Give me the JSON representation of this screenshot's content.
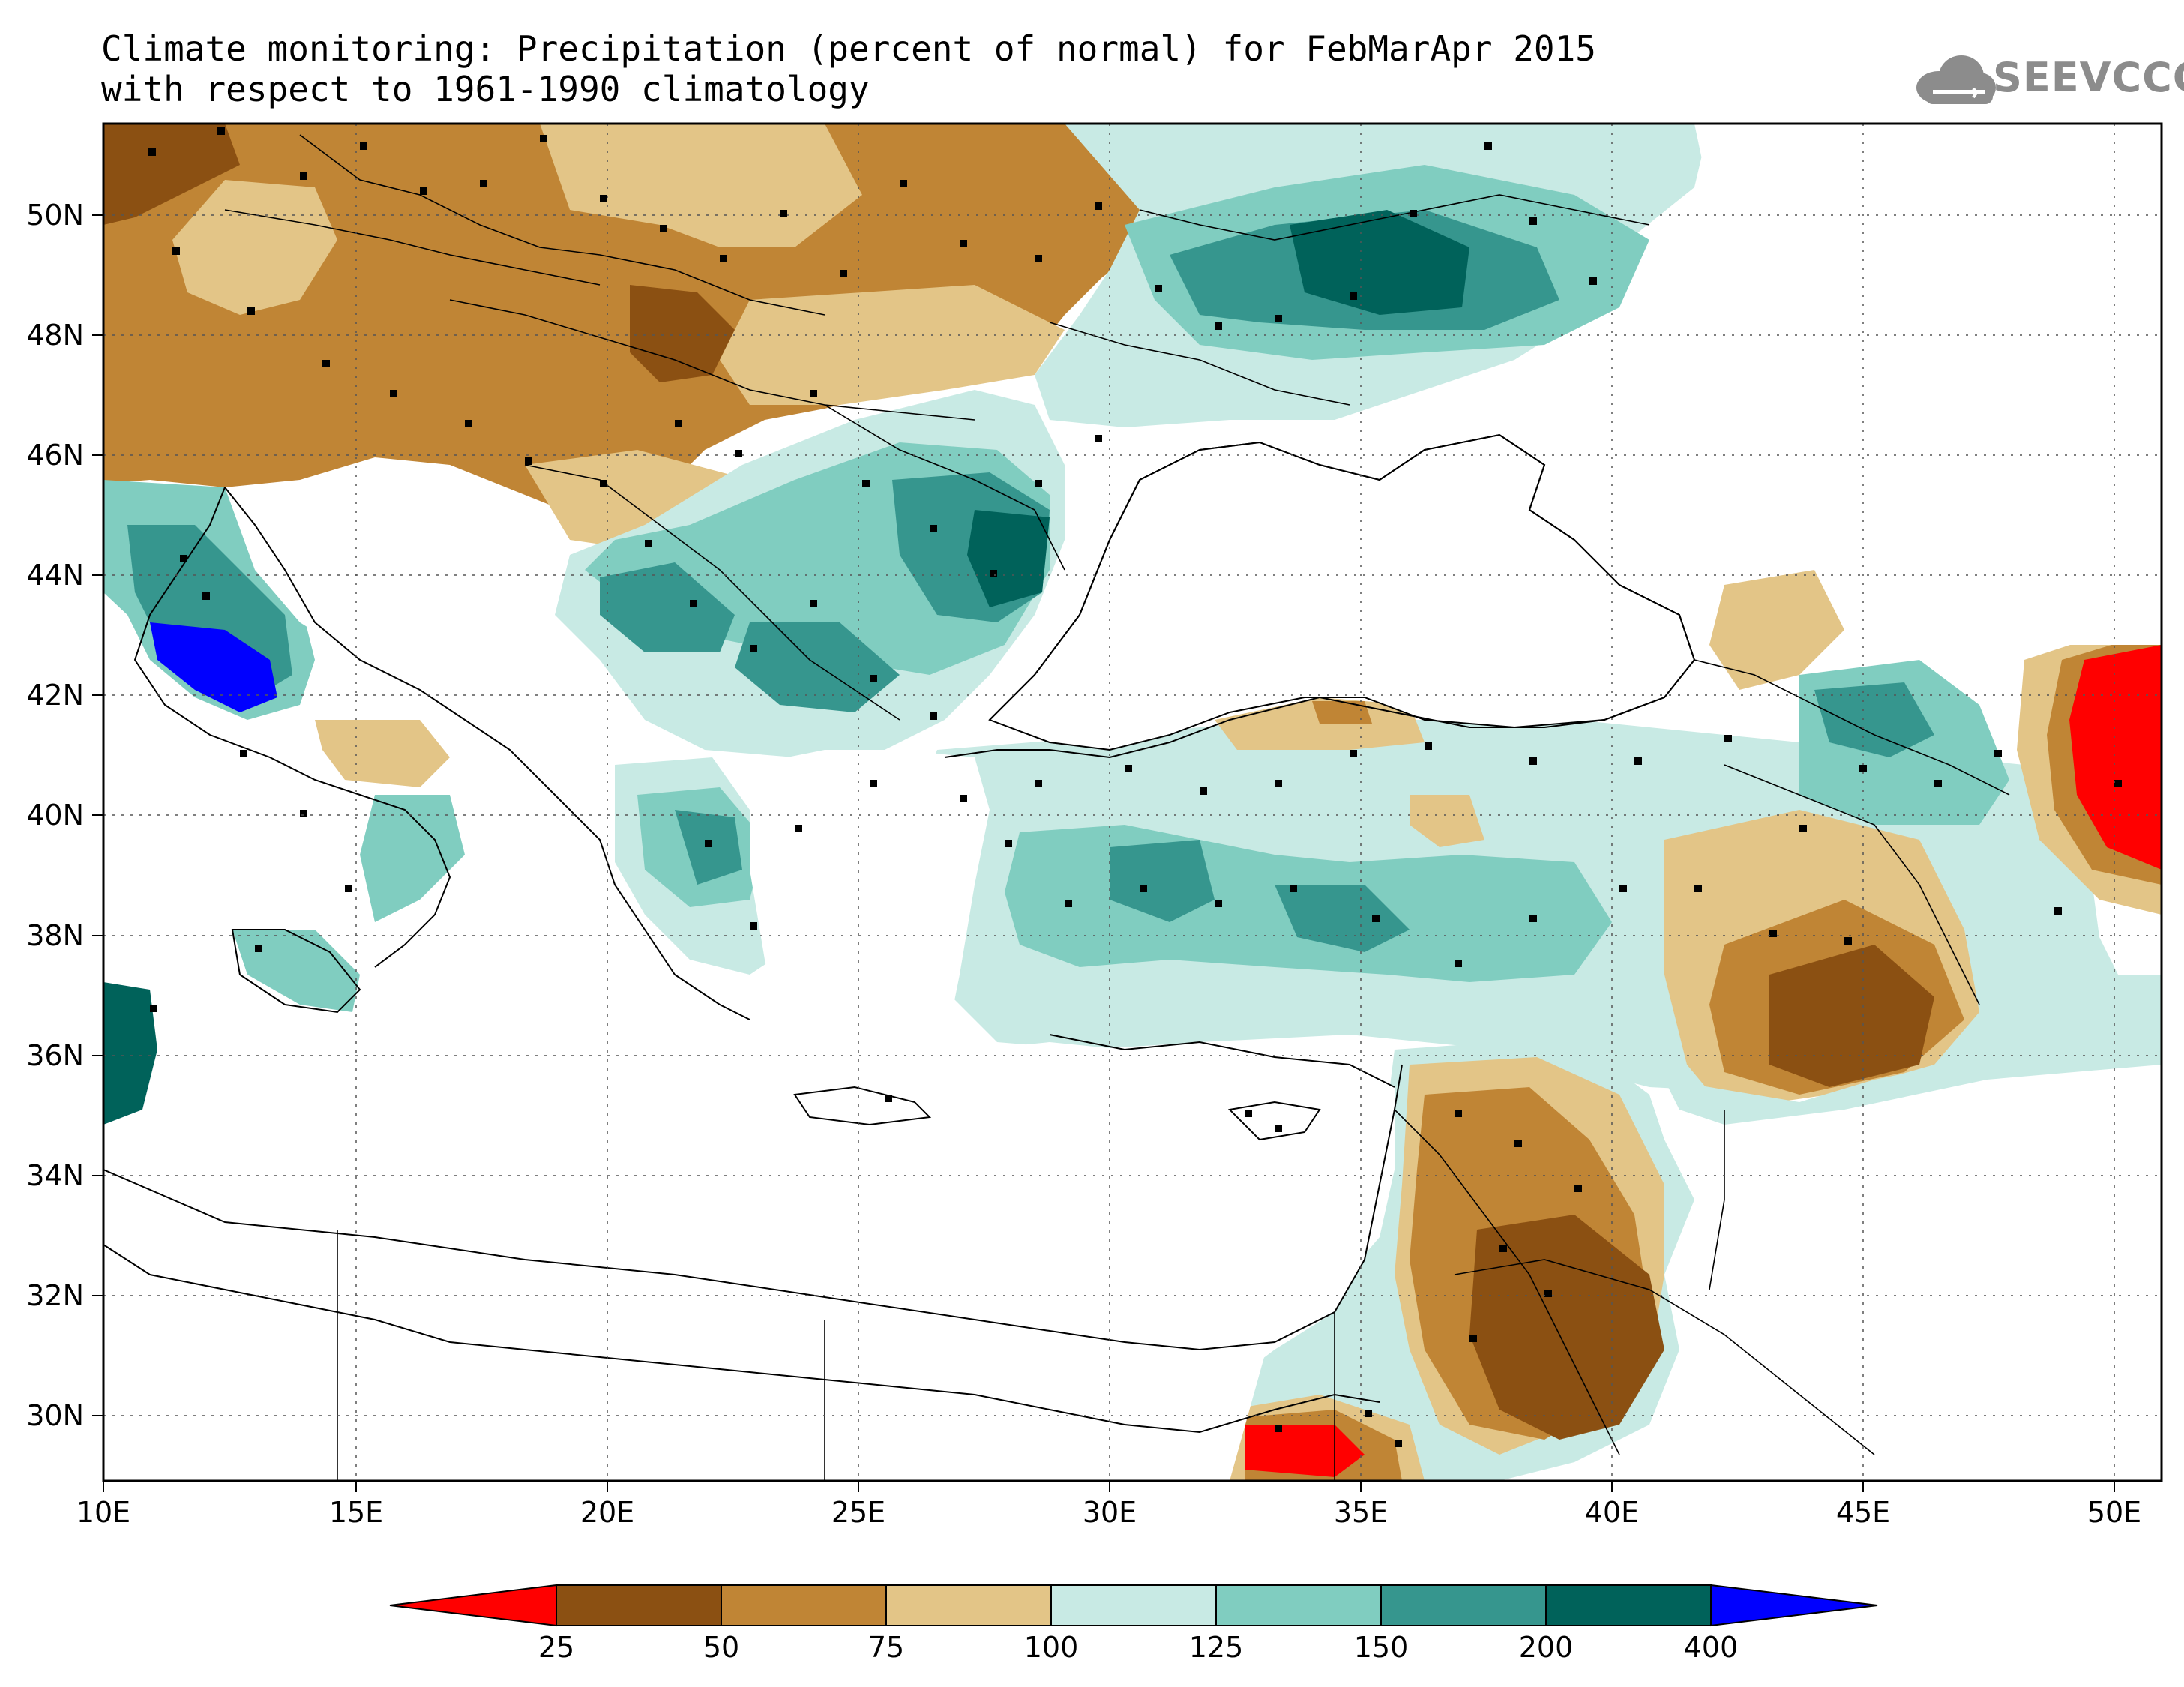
{
  "title": {
    "line1": "Climate monitoring: Precipitation (percent of normal) for FebMarApr 2015",
    "line2": "with respect to 1961-1990 climatology"
  },
  "logo": {
    "text": "SEEVCCC",
    "icon": "cloud-icon"
  },
  "map": {
    "lon_range": [
      10,
      51
    ],
    "lat_range": [
      29,
      51.5
    ],
    "lon_ticks": [
      "10E",
      "15E",
      "20E",
      "25E",
      "30E",
      "35E",
      "40E",
      "45E",
      "50E"
    ],
    "lat_ticks": [
      "30N",
      "32N",
      "34N",
      "36N",
      "38N",
      "40N",
      "42N",
      "44N",
      "46N",
      "48N",
      "50N"
    ],
    "grid": "dotted"
  },
  "colorbar": {
    "labels": [
      "25",
      "50",
      "75",
      "100",
      "125",
      "150",
      "200",
      "400"
    ],
    "colors": [
      "#ff0000",
      "#8b5012",
      "#c08535",
      "#e3c587",
      "#c8eae4",
      "#80cdc0",
      "#36968e",
      "#00625a",
      "#0000ff"
    ]
  }
}
